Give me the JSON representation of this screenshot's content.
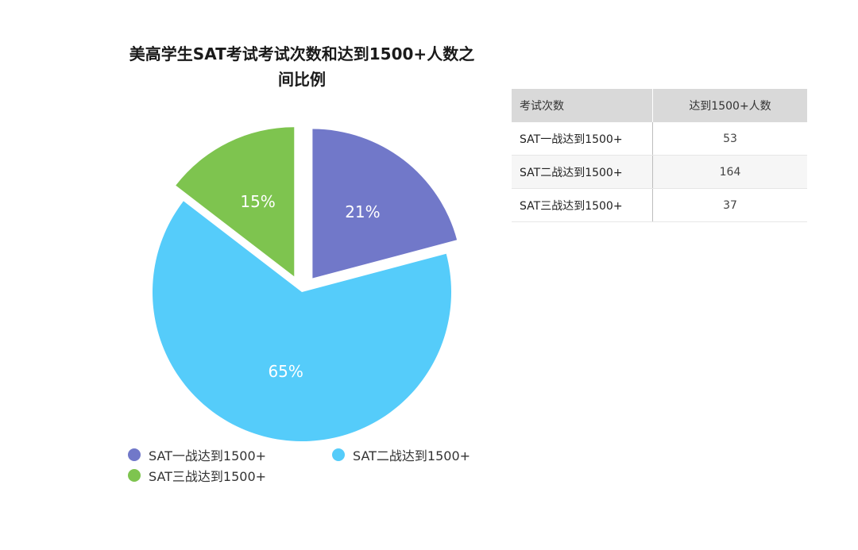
{
  "chart_data": {
    "type": "pie",
    "title": "美高学生SAT考试考试次数和达到1500+人数之间比例",
    "categories": [
      "SAT一战达到1500+",
      "SAT二战达到1500+",
      "SAT三战达到1500+"
    ],
    "values": [
      53,
      164,
      37
    ],
    "percent_labels": [
      "21%",
      "65%",
      "15%"
    ],
    "colors": [
      "#7178c9",
      "#55ccfa",
      "#7ec44f"
    ],
    "exploded": true,
    "legend_position": "bottom"
  },
  "table": {
    "headers": [
      "考试次数",
      "达到1500+人数"
    ],
    "rows": [
      [
        "SAT一战达到1500+",
        "53"
      ],
      [
        "SAT二战达到1500+",
        "164"
      ],
      [
        "SAT三战达到1500+",
        "37"
      ]
    ]
  }
}
